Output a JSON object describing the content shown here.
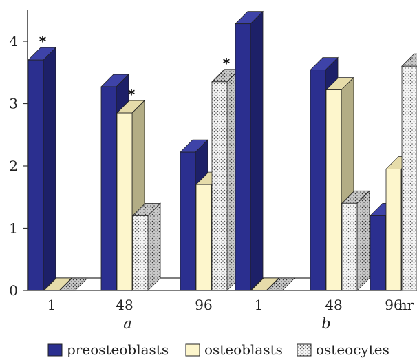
{
  "chart_data": {
    "type": "bar",
    "style": "3d-clustered",
    "categories": [
      "1",
      "48",
      "96",
      "1",
      "48",
      "96"
    ],
    "groups": [
      {
        "label": "a",
        "category_indices": [
          0,
          1,
          2
        ]
      },
      {
        "label": "b",
        "category_indices": [
          3,
          4,
          5
        ]
      }
    ],
    "x_unit_label": "hr",
    "ylim": [
      0,
      4.5
    ],
    "yticks": [
      "0",
      "1",
      "2",
      "3",
      "4"
    ],
    "series": [
      {
        "name": "preosteoblasts",
        "values": [
          3.7,
          3.27,
          2.22,
          4.28,
          3.54,
          1.2
        ],
        "pattern": "solid"
      },
      {
        "name": "osteoblasts",
        "values": [
          0,
          2.85,
          1.7,
          0,
          3.22,
          1.95
        ],
        "pattern": "solid"
      },
      {
        "name": "osteocytes",
        "values": [
          0,
          1.2,
          3.35,
          0,
          1.4,
          3.6
        ],
        "pattern": "dots"
      }
    ],
    "annotations": [
      {
        "series": 0,
        "category": 0,
        "text": "*"
      },
      {
        "series": 1,
        "category": 1,
        "text": "*"
      },
      {
        "series": 2,
        "category": 2,
        "text": "*"
      }
    ],
    "colors": {
      "preosteoblasts": {
        "front": "#2b2f8f",
        "top": "#3e43a8",
        "side": "#1d2068"
      },
      "osteoblasts": {
        "front": "#fdf6cc",
        "top": "#e6dcaa",
        "side": "#b3ad85"
      },
      "osteocytes": {
        "front": "#f1f1f1",
        "top": "#d9d9d9",
        "side": "#bdbdbd"
      }
    },
    "legend_position": "bottom",
    "grid": false
  }
}
